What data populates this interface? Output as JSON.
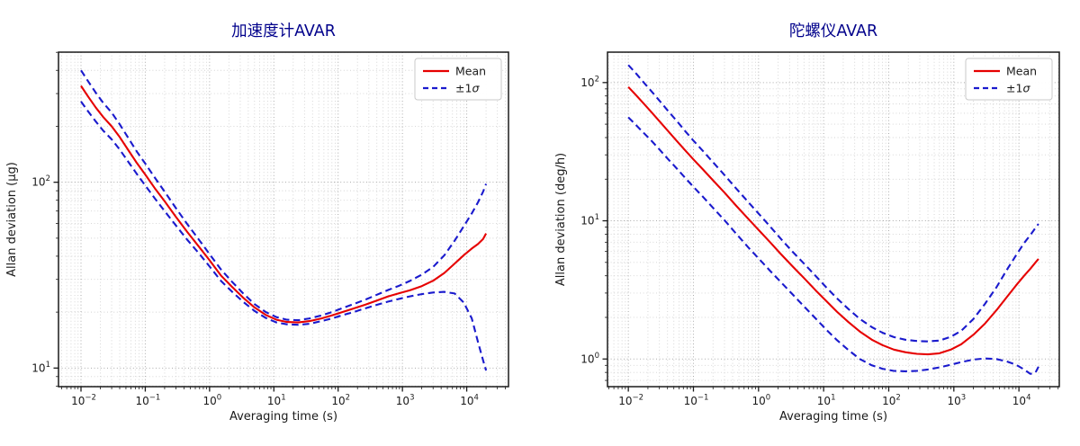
{
  "figure": {
    "background": "#ffffff"
  },
  "chart_data": [
    {
      "type": "line",
      "title": "加速度计AVAR",
      "title_color": "#00008B",
      "xlabel": "Averaging time (s)",
      "ylabel": "Allan deviation (μg)",
      "x_scale": "log",
      "y_scale": "log",
      "xlim_log": [
        -2.35,
        4.65
      ],
      "ylim_log": [
        0.9,
        2.7
      ],
      "x_tick_exponents": [
        -2,
        -1,
        0,
        1,
        2,
        3,
        4
      ],
      "y_tick_exponents": [
        1,
        2
      ],
      "grid": "major+minor dotted",
      "legend_position": "upper right",
      "legend": [
        {
          "label": "Mean",
          "color": "#e60000",
          "dashed": false
        },
        {
          "label": "±1σ",
          "color": "#1a1acd",
          "dashed": true
        }
      ],
      "tau": [
        0.01,
        0.013,
        0.017,
        0.022,
        0.03,
        0.04,
        0.055,
        0.075,
        0.1,
        0.14,
        0.2,
        0.3,
        0.45,
        0.7,
        1,
        1.5,
        2.2,
        3.3,
        5,
        7.5,
        11,
        16,
        24,
        36,
        55,
        80,
        120,
        180,
        270,
        400,
        600,
        900,
        1300,
        2000,
        3000,
        4500,
        6500,
        9000,
        12000,
        15000,
        18000,
        20000
      ],
      "series": [
        {
          "name": "Mean",
          "color": "#e60000",
          "dashed": false,
          "values": [
            330,
            288,
            252,
            225,
            200,
            175,
            148,
            126,
            110,
            93,
            79,
            65,
            54,
            44.5,
            38,
            31.5,
            27.5,
            24,
            21.2,
            19.3,
            18.2,
            17.7,
            17.6,
            17.9,
            18.5,
            19.2,
            20.1,
            21,
            22,
            23.1,
            24.3,
            25.3,
            26.2,
            27.6,
            29.5,
            32.5,
            36.5,
            40.5,
            44,
            46.5,
            49.5,
            53
          ]
        },
        {
          "name": "+1σ",
          "color": "#1a1acd",
          "dashed": true,
          "values": [
            400,
            348,
            303,
            268,
            237,
            205,
            172,
            145,
            126,
            106,
            89,
            72.5,
            59.5,
            48.5,
            41,
            34,
            29.3,
            25.3,
            22.1,
            20,
            18.8,
            18.2,
            18.1,
            18.5,
            19.2,
            20,
            21.1,
            22.2,
            23.4,
            24.8,
            26.3,
            27.8,
            29.4,
            31.8,
            35,
            40.5,
            48.5,
            58,
            68,
            78,
            89,
            98
          ]
        },
        {
          "name": "−1σ",
          "color": "#1a1acd",
          "dashed": true,
          "values": [
            272,
            240,
            212,
            190,
            170,
            150,
            128,
            110,
            96,
            82,
            70,
            58.5,
            49,
            41,
            35.2,
            29.5,
            25.9,
            22.8,
            20.3,
            18.6,
            17.6,
            17.2,
            17.1,
            17.3,
            17.9,
            18.5,
            19.3,
            20.1,
            21,
            21.9,
            22.8,
            23.6,
            24.3,
            25,
            25.5,
            25.7,
            25.2,
            22.5,
            18.5,
            13.8,
            11,
            9.7
          ]
        }
      ]
    },
    {
      "type": "line",
      "title": "陀螺仪AVAR",
      "title_color": "#00008B",
      "xlabel": "Averaging time (s)",
      "ylabel": "Allan deviation (deg/h)",
      "x_scale": "log",
      "y_scale": "log",
      "xlim_log": [
        -2.32,
        4.62
      ],
      "ylim_log": [
        -0.2,
        2.22
      ],
      "x_tick_exponents": [
        -2,
        -1,
        0,
        1,
        2,
        3,
        4
      ],
      "y_tick_exponents": [
        0,
        1,
        2
      ],
      "grid": "major+minor dotted",
      "legend_position": "upper right",
      "legend": [
        {
          "label": "Mean",
          "color": "#e60000",
          "dashed": false
        },
        {
          "label": "±1σ",
          "color": "#1a1acd",
          "dashed": true
        }
      ],
      "tau": [
        0.01,
        0.013,
        0.017,
        0.022,
        0.03,
        0.04,
        0.055,
        0.075,
        0.1,
        0.14,
        0.2,
        0.3,
        0.45,
        0.7,
        1,
        1.5,
        2.2,
        3.3,
        5,
        7.5,
        11,
        16,
        24,
        36,
        55,
        80,
        120,
        180,
        270,
        400,
        600,
        900,
        1300,
        2000,
        3000,
        4500,
        6500,
        9000,
        12000,
        15000,
        18000,
        20000
      ],
      "series": [
        {
          "name": "Mean",
          "color": "#e60000",
          "dashed": false,
          "values": [
            93,
            81.5,
            71,
            62,
            52.5,
            45,
            38,
            32.3,
            27.8,
            23.5,
            19.6,
            16,
            12.9,
            10.3,
            8.6,
            7,
            5.75,
            4.7,
            3.85,
            3.15,
            2.63,
            2.2,
            1.85,
            1.58,
            1.38,
            1.26,
            1.17,
            1.12,
            1.09,
            1.08,
            1.1,
            1.17,
            1.28,
            1.5,
            1.8,
            2.25,
            2.8,
            3.4,
            4,
            4.5,
            5,
            5.3
          ]
        },
        {
          "name": "+1σ",
          "color": "#1a1acd",
          "dashed": true,
          "values": [
            134,
            117,
            101,
            88,
            74,
            63,
            53,
            44.5,
            38,
            32,
            26.5,
            21.4,
            17.2,
            13.6,
            11.3,
            9.1,
            7.4,
            6,
            4.9,
            4,
            3.3,
            2.75,
            2.3,
            1.95,
            1.7,
            1.55,
            1.44,
            1.38,
            1.35,
            1.34,
            1.36,
            1.45,
            1.6,
            1.95,
            2.5,
            3.3,
            4.4,
            5.6,
            6.9,
            7.9,
            8.9,
            9.5
          ]
        },
        {
          "name": "−1σ",
          "color": "#1a1acd",
          "dashed": true,
          "values": [
            56,
            49.5,
            43.5,
            38.5,
            32.8,
            28.2,
            24,
            20.4,
            17.6,
            14.9,
            12.4,
            10.1,
            8.1,
            6.4,
            5.35,
            4.35,
            3.6,
            2.95,
            2.4,
            1.97,
            1.63,
            1.37,
            1.16,
            1,
            0.9,
            0.85,
            0.82,
            0.815,
            0.82,
            0.84,
            0.87,
            0.91,
            0.95,
            0.99,
            1.01,
            1,
            0.96,
            0.91,
            0.84,
            0.78,
            0.8,
            0.88
          ]
        }
      ]
    }
  ]
}
